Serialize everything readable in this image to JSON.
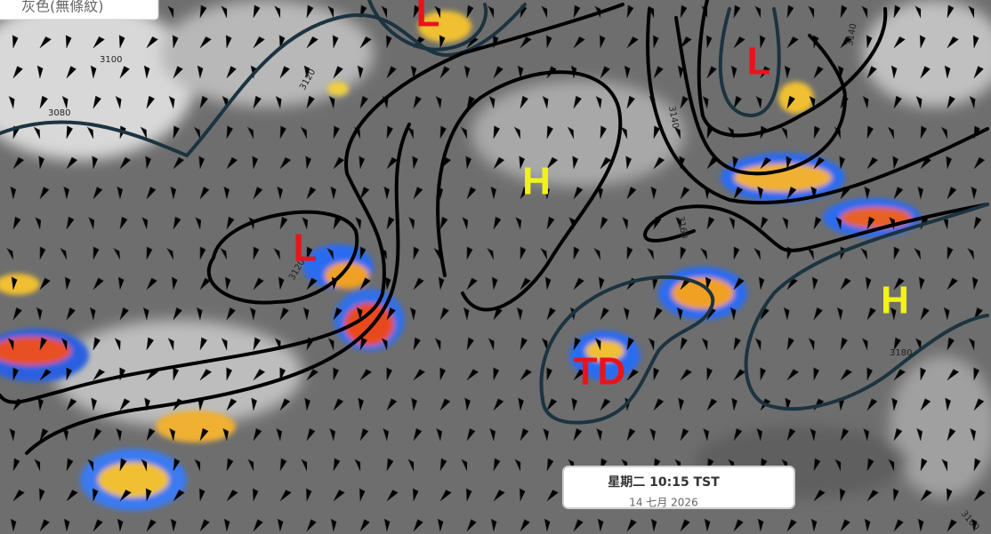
{
  "header": {
    "label": "灰色(無條紋)"
  },
  "pressure_systems": [
    {
      "label": "L",
      "color": "#e8141c"
    },
    {
      "label": "L",
      "color": "#e8141c"
    },
    {
      "label": "H",
      "color": "#f2f21a"
    },
    {
      "label": "L",
      "color": "#e8141c"
    },
    {
      "label": "H",
      "color": "#f2f21a"
    },
    {
      "label": "TD",
      "color": "#e8141c"
    }
  ],
  "contour_labels": [
    "3100",
    "3080",
    "3120",
    "3140",
    "3140",
    "3160",
    "3180",
    "3160",
    "3120"
  ],
  "timestamp": {
    "day_time": "星期二 10:15 TST",
    "date": "14 七月 2026"
  }
}
